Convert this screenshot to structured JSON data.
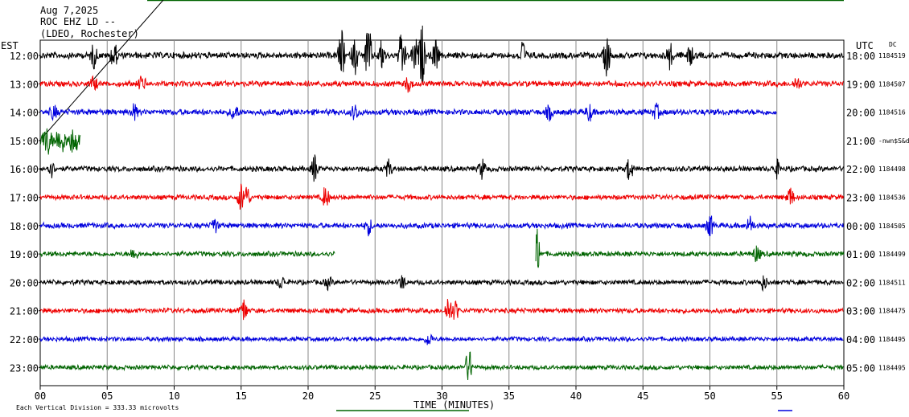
{
  "header": {
    "date": "Aug 7,2025",
    "station": "ROC EHZ LD --",
    "network": "(LDEO, Rochester)"
  },
  "left_timezone": "EST",
  "right_timezone": "UTC",
  "dc_label": "DC",
  "xlabel": "TIME (MINUTES)",
  "footer_note": "Each Vertical Division =  333.33 microvolts",
  "chart_data": {
    "type": "line",
    "title": "",
    "xlabel": "TIME (MINUTES)",
    "xlim": [
      0,
      60
    ],
    "x_ticks": [
      "00",
      "05",
      "10",
      "15",
      "20",
      "25",
      "30",
      "35",
      "40",
      "45",
      "50",
      "55",
      "60"
    ],
    "grid": true,
    "colors": {
      "black": "#000000",
      "red": "#ee0000",
      "blue": "#0000dd",
      "green": "#006400"
    },
    "series": [
      {
        "left_label": "12:00",
        "right_label": "18:00",
        "dc": "1184519",
        "color": "black",
        "start": 0,
        "end": 60,
        "amp": 4.5,
        "events": [
          [
            4,
            14
          ],
          [
            5.5,
            16
          ],
          [
            22.5,
            30
          ],
          [
            23.5,
            22
          ],
          [
            24.5,
            40
          ],
          [
            25.5,
            18
          ],
          [
            27,
            34
          ],
          [
            28,
            22
          ],
          [
            28.5,
            38
          ],
          [
            29.5,
            20
          ],
          [
            36,
            18
          ],
          [
            42.3,
            26
          ],
          [
            47,
            16
          ],
          [
            48.5,
            12
          ]
        ]
      },
      {
        "left_label": "13:00",
        "right_label": "19:00",
        "dc": "1184507",
        "color": "red",
        "start": 0,
        "end": 60,
        "amp": 4,
        "events": [
          [
            4,
            8
          ],
          [
            7.6,
            10
          ],
          [
            27.5,
            9
          ],
          [
            56.5,
            8
          ]
        ]
      },
      {
        "left_label": "14:00",
        "right_label": "20:00",
        "dc": "1184516",
        "color": "blue",
        "start": 0,
        "end": 55,
        "amp": 4.2,
        "events": [
          [
            1,
            8
          ],
          [
            7,
            9
          ],
          [
            14.5,
            10
          ],
          [
            23.5,
            9
          ],
          [
            38,
            8
          ],
          [
            41,
            10
          ],
          [
            46,
            8
          ]
        ]
      },
      {
        "left_label": "15:00",
        "right_label": "21:00",
        "dc": "-nwn$S&d",
        "color": "green",
        "start": 0,
        "end": 3,
        "amp": 10,
        "events": [
          [
            0.5,
            12
          ],
          [
            1.5,
            12
          ],
          [
            2.5,
            11
          ]
        ]
      },
      {
        "left_label": "16:00",
        "right_label": "22:00",
        "dc": "1184498",
        "color": "black",
        "start": 0,
        "end": 60,
        "amp": 3.8,
        "events": [
          [
            0.8,
            10
          ],
          [
            20.5,
            18
          ],
          [
            26,
            10
          ],
          [
            33,
            12
          ],
          [
            44,
            14
          ],
          [
            55,
            10
          ]
        ]
      },
      {
        "left_label": "17:00",
        "right_label": "23:00",
        "dc": "1184536",
        "color": "red",
        "start": 0,
        "end": 60,
        "amp": 3.5,
        "events": [
          [
            15,
            18
          ],
          [
            15.4,
            16
          ],
          [
            21.3,
            14
          ],
          [
            56,
            12
          ]
        ]
      },
      {
        "left_label": "18:00",
        "right_label": "00:00",
        "dc": "1184505",
        "color": "blue",
        "start": 0,
        "end": 60,
        "amp": 3.8,
        "events": [
          [
            13,
            9
          ],
          [
            24.5,
            10
          ],
          [
            50,
            14
          ],
          [
            53,
            10
          ]
        ]
      },
      {
        "left_label": "19:00",
        "right_label": "01:00",
        "dc": "1184499",
        "color": "green",
        "segments": [
          [
            0,
            22
          ],
          [
            37,
            60
          ]
        ],
        "amp": 3.5,
        "events": [
          [
            7,
            8
          ],
          [
            37.1,
            30
          ],
          [
            53.5,
            10
          ]
        ]
      },
      {
        "left_label": "20:00",
        "right_label": "02:00",
        "dc": "1184511",
        "color": "black",
        "start": 0,
        "end": 60,
        "amp": 3.5,
        "events": [
          [
            18,
            8
          ],
          [
            21.5,
            7
          ],
          [
            27,
            8
          ],
          [
            54,
            9
          ]
        ]
      },
      {
        "left_label": "21:00",
        "right_label": "03:00",
        "dc": "1184475",
        "color": "red",
        "start": 0,
        "end": 60,
        "amp": 3.5,
        "events": [
          [
            15.2,
            14
          ],
          [
            30.5,
            20
          ],
          [
            31,
            12
          ]
        ]
      },
      {
        "left_label": "22:00",
        "right_label": "04:00",
        "dc": "1184495",
        "color": "blue",
        "start": 0,
        "end": 60,
        "amp": 3.2,
        "events": [
          [
            29,
            8
          ]
        ]
      },
      {
        "left_label": "23:00",
        "right_label": "05:00",
        "dc": "1184495",
        "color": "green",
        "start": 0,
        "end": 60,
        "amp": 3.2,
        "events": [
          [
            32,
            24
          ]
        ]
      }
    ]
  }
}
